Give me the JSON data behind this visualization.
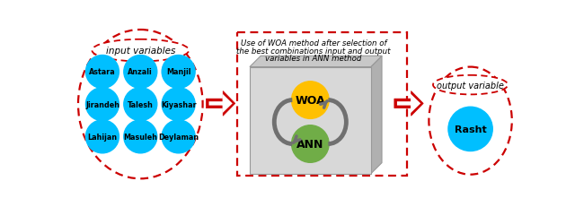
{
  "input_labels": [
    "Astara",
    "Anzali",
    "Manjil",
    "Jirandeh",
    "Talesh",
    "Kiyashar",
    "Lahijan",
    "Masuleh",
    "Deylaman"
  ],
  "input_title": "input variables",
  "output_label": "Rasht",
  "output_title": "output variable",
  "woa_label": "WOA",
  "ann_label": "ANN",
  "box_text_line1": "Use of WOA method after selection of",
  "box_text_line2": "the best combinations input and output",
  "box_text_line3": "variables in ANN method",
  "circle_color": "#00BFFF",
  "woa_color": "#FFC000",
  "ann_color": "#70AD47",
  "dashed_color": "#CC0000",
  "arrow_color": "#CC0000",
  "bg_color": "#FFFFFF",
  "face_3d": "#D8D8D8",
  "side_3d": "#B0B0B0",
  "top_3d": "#C8C8C8"
}
